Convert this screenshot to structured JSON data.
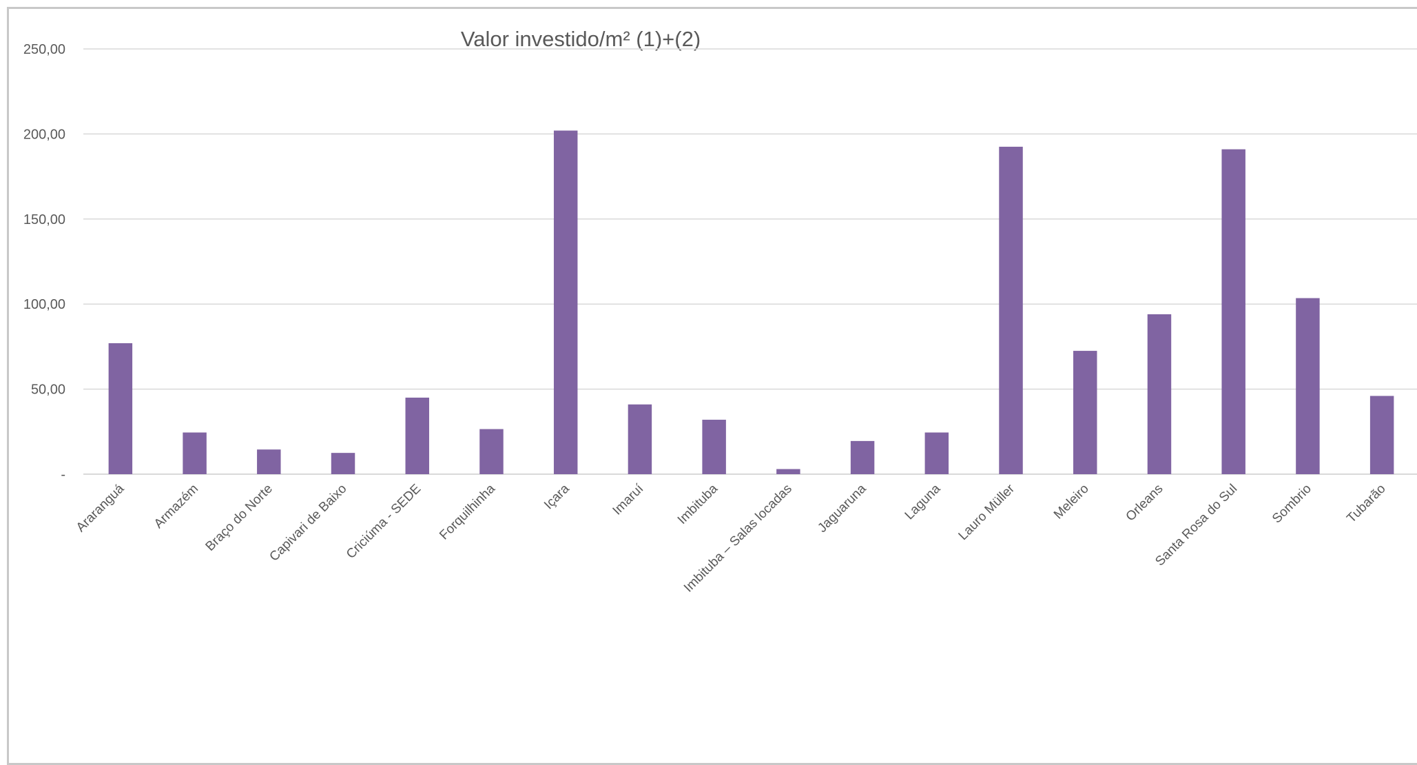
{
  "chart_data": {
    "type": "bar",
    "title": "Valor investido/m² (1)+(2)",
    "xlabel": "",
    "ylabel": "",
    "ylim": [
      0,
      250
    ],
    "y_ticks": [
      {
        "value": 0,
        "label": "-"
      },
      {
        "value": 50,
        "label": "50,00"
      },
      {
        "value": 100,
        "label": "100,00"
      },
      {
        "value": 150,
        "label": "150,00"
      },
      {
        "value": 200,
        "label": "200,00"
      },
      {
        "value": 250,
        "label": "250,00"
      }
    ],
    "grid": true,
    "legend": "none",
    "bar_color": "#8064a2",
    "categories": [
      "Araranguá",
      "Armazém",
      "Braço do Norte",
      "Capivari de Baixo",
      "Criciúma - SEDE",
      "Forquilhinha",
      "Içara",
      "Imaruí",
      "Imbituba",
      "Imbituba – Salas locadas",
      "Jaguaruna",
      "Laguna",
      "Lauro Müller",
      "Meleiro",
      "Orleans",
      "Santa Rosa do Sul",
      "Sombrio",
      "Tubarão"
    ],
    "values": [
      77,
      24.5,
      14.5,
      12.5,
      45,
      26.5,
      202,
      41,
      32,
      3,
      19.5,
      24.5,
      192.5,
      72.5,
      94,
      191,
      103.5,
      46
    ]
  }
}
